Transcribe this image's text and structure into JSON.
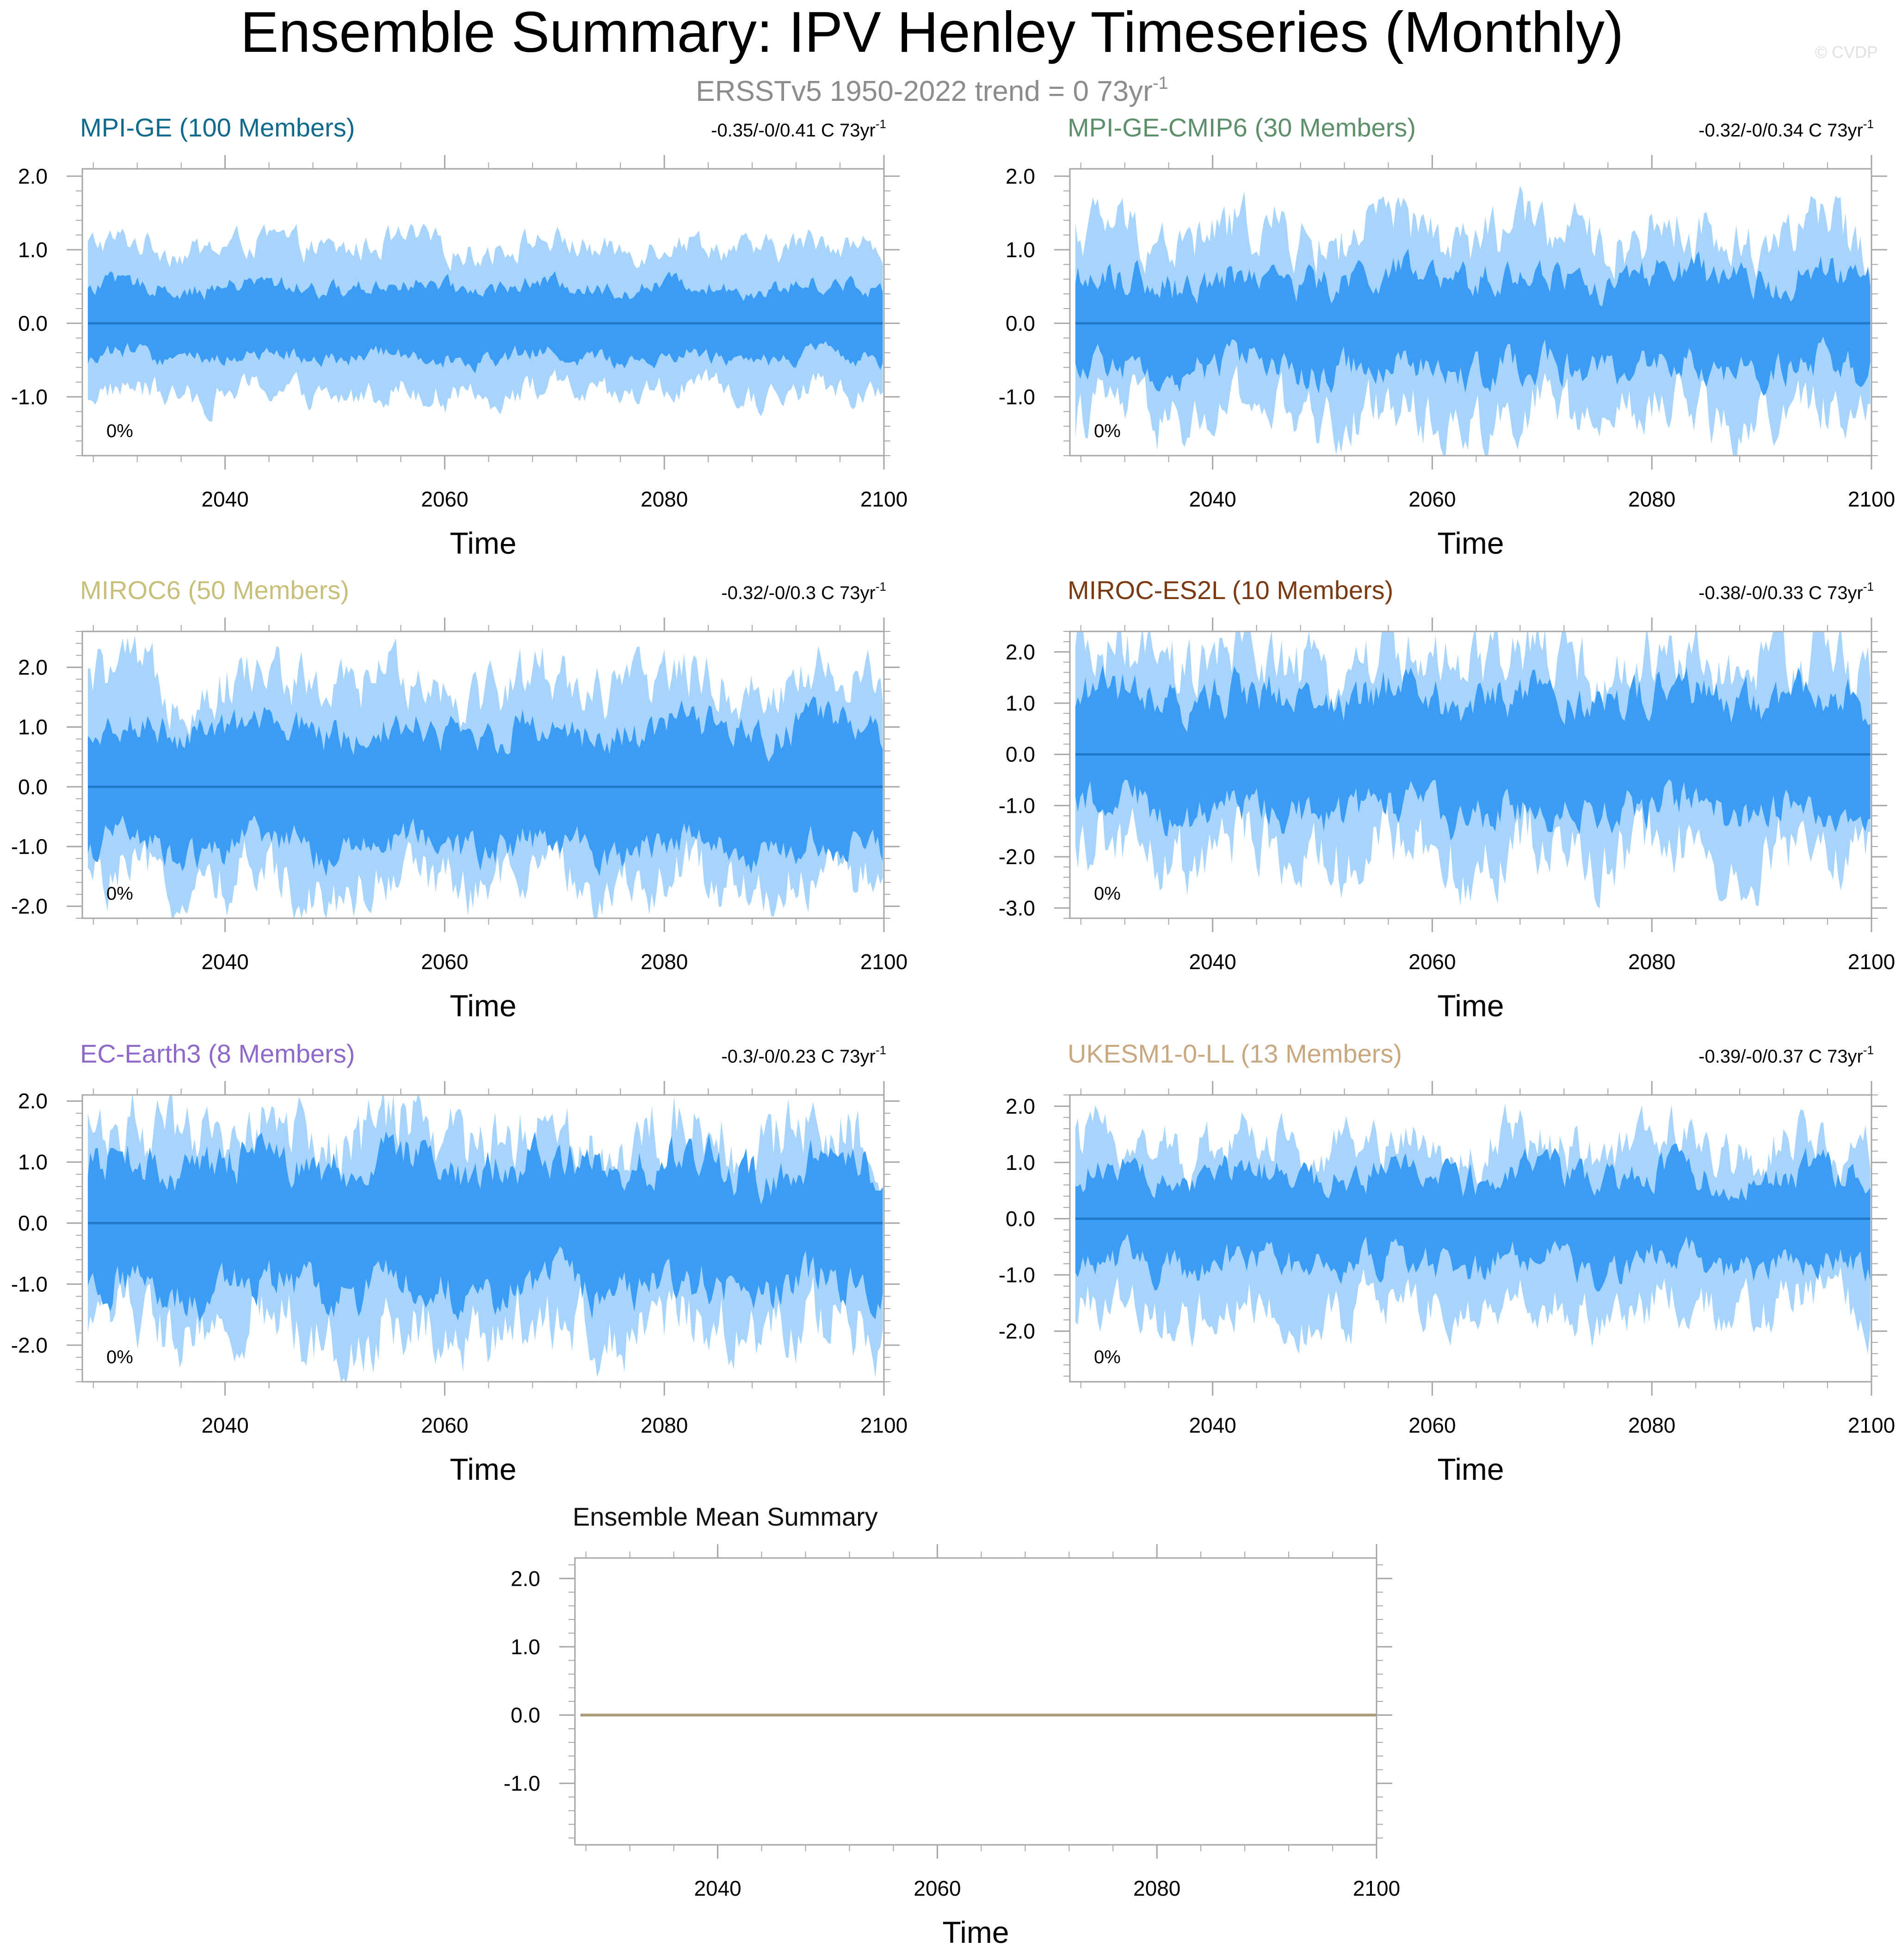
{
  "header": {
    "title": "Ensemble Summary: IPV Henley Timeseries (Monthly)",
    "subtitle_main": "ERSSTv5 1950-2022 trend = 0 73yr",
    "subtitle_sup": "-1",
    "watermark": "© CVDP"
  },
  "colors": {
    "band_outer": "#a7d4fb",
    "band_inner": "#3b9cf5",
    "mean_line": "#1f78c8",
    "frame": "#a6a6a6"
  },
  "chart_data": [
    {
      "type": "area",
      "title": "MPI-GE (100 Members)",
      "title_color": "#0f6a8c",
      "trend_text": "-0.35/-0/0.41 C 73yr",
      "trend_sup": "-1",
      "pct_label": "0%",
      "xlabel": "Time",
      "xlim": [
        2027,
        2100
      ],
      "ylim": [
        -1.8,
        2.1
      ],
      "x_ticks": [
        2040,
        2060,
        2080,
        2100
      ],
      "y_ticks": [
        2,
        1,
        0,
        -1
      ],
      "y_tick_labels": [
        "2.0",
        "1.0",
        "0.0",
        "-1.0"
      ],
      "ensemble_mean": 0,
      "bands": {
        "outer": [
          -0.95,
          1.05
        ],
        "inner": [
          -0.45,
          0.5
        ],
        "noise": 0.1
      }
    },
    {
      "type": "area",
      "title": "MPI-GE-CMIP6 (30 Members)",
      "title_color": "#5e8f6b",
      "trend_text": "-0.32/-0/0.34 C 73yr",
      "trend_sup": "-1",
      "pct_label": "0%",
      "xlabel": "Time",
      "xlim": [
        2027,
        2100
      ],
      "ylim": [
        -1.8,
        2.1
      ],
      "x_ticks": [
        2040,
        2060,
        2080,
        2100
      ],
      "y_ticks": [
        2,
        1,
        0,
        -1
      ],
      "y_tick_labels": [
        "2.0",
        "1.0",
        "0.0",
        "-1.0"
      ],
      "ensemble_mean": 0,
      "bands": {
        "outer": [
          -1.25,
          1.2
        ],
        "inner": [
          -0.6,
          0.6
        ],
        "noise": 0.2
      }
    },
    {
      "type": "area",
      "title": "MIROC6 (50 Members)",
      "title_color": "#c8c07a",
      "trend_text": "-0.32/-0/0.3 C 73yr",
      "trend_sup": "-1",
      "pct_label": "0%",
      "xlabel": "Time",
      "xlim": [
        2027,
        2100
      ],
      "ylim": [
        -2.2,
        2.6
      ],
      "x_ticks": [
        2040,
        2060,
        2080,
        2100
      ],
      "y_ticks": [
        2,
        1,
        0,
        -1,
        -2
      ],
      "y_tick_labels": [
        "2.0",
        "1.0",
        "0.0",
        "-1.0",
        "-2.0"
      ],
      "ensemble_mean": 0,
      "bands": {
        "outer": [
          -1.6,
          1.75
        ],
        "inner": [
          -1.0,
          0.95
        ],
        "noise": 0.25
      }
    },
    {
      "type": "area",
      "title": "MIROC-ES2L (10 Members)",
      "title_color": "#7a3b12",
      "trend_text": "-0.38/-0/0.33 C 73yr",
      "trend_sup": "-1",
      "pct_label": "0%",
      "xlabel": "Time",
      "xlim": [
        2027,
        2100
      ],
      "ylim": [
        -3.2,
        2.4
      ],
      "x_ticks": [
        2040,
        2060,
        2080,
        2100
      ],
      "y_ticks": [
        2,
        1,
        0,
        -1,
        -2,
        -3
      ],
      "y_tick_labels": [
        "2.0",
        "1.0",
        "0.0",
        "-1.0",
        "-2.0",
        "-3.0"
      ],
      "ensemble_mean": 0,
      "bands": {
        "outer": [
          -1.9,
          1.75
        ],
        "inner": [
          -1.1,
          1.1
        ],
        "noise": 0.35
      }
    },
    {
      "type": "area",
      "title": "EC-Earth3 (8 Members)",
      "title_color": "#8e69c9",
      "trend_text": "-0.3/-0/0.23 C 73yr",
      "trend_sup": "-1",
      "pct_label": "0%",
      "xlabel": "Time",
      "xlim": [
        2027,
        2100
      ],
      "ylim": [
        -2.6,
        2.1
      ],
      "x_ticks": [
        2040,
        2060,
        2080,
        2100
      ],
      "y_ticks": [
        2,
        1,
        0,
        -1,
        -2
      ],
      "y_tick_labels": [
        "2.0",
        "1.0",
        "0.0",
        "-1.0",
        "-2.0"
      ],
      "ensemble_mean": 0,
      "bands": {
        "outer": [
          -1.7,
          1.45
        ],
        "inner": [
          -1.05,
          0.95
        ],
        "noise": 0.3
      }
    },
    {
      "type": "area",
      "title": "UKESM1-0-LL (13 Members)",
      "title_color": "#c9a77f",
      "trend_text": "-0.39/-0/0.37 C 73yr",
      "trend_sup": "-1",
      "pct_label": "0%",
      "xlabel": "Time",
      "xlim": [
        2027,
        2100
      ],
      "ylim": [
        -2.9,
        2.2
      ],
      "x_ticks": [
        2040,
        2060,
        2080,
        2100
      ],
      "y_ticks": [
        2,
        1,
        0,
        -1,
        -2
      ],
      "y_tick_labels": [
        "2.0",
        "1.0",
        "0.0",
        "-1.0",
        "-2.0"
      ],
      "ensemble_mean": 0,
      "bands": {
        "outer": [
          -1.6,
          1.3
        ],
        "inner": [
          -0.8,
          0.75
        ],
        "noise": 0.25
      }
    },
    {
      "type": "line",
      "title": "Ensemble Mean Summary",
      "title_color": "#111111",
      "xlabel": "Time",
      "xlim": [
        2027,
        2100
      ],
      "ylim": [
        -1.9,
        2.3
      ],
      "x_ticks": [
        2040,
        2060,
        2080,
        2100
      ],
      "y_ticks": [
        2,
        1,
        0,
        -1
      ],
      "y_tick_labels": [
        "2.0",
        "1.0",
        "0.0",
        "-1.0"
      ],
      "series": [
        {
          "x": [
            2027,
            2100
          ],
          "y": [
            0,
            0
          ],
          "color": "#a89a77"
        }
      ]
    }
  ]
}
